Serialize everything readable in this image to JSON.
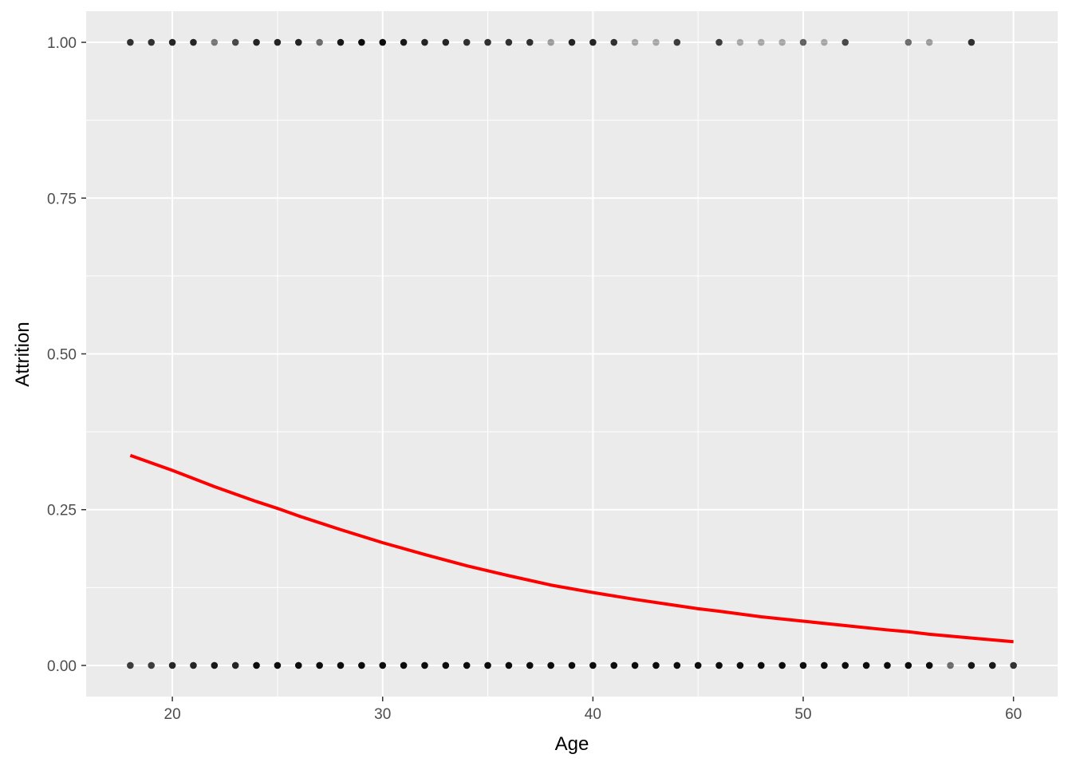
{
  "chart_data": {
    "type": "scatter",
    "xlabel": "Age",
    "ylabel": "Attrition",
    "xlim": [
      15.9,
      62.1
    ],
    "ylim": [
      -0.05,
      1.05
    ],
    "x_ticks": [
      20,
      30,
      40,
      50,
      60
    ],
    "x_tick_labels": [
      "20",
      "30",
      "40",
      "50",
      "60"
    ],
    "y_ticks": [
      0,
      0.25,
      0.5,
      0.75,
      1.0
    ],
    "y_tick_labels": [
      "0.00",
      "0.25",
      "0.50",
      "0.75",
      "1.00"
    ],
    "grid": true,
    "legend": "none",
    "colors": {
      "panel": "#ebebeb",
      "grid": "#ffffff",
      "points": "#000000",
      "fit_line": "#ff0000"
    },
    "series": [
      {
        "kind": "points",
        "y": 1,
        "points": [
          {
            "x": 18,
            "opacity": 0.8
          },
          {
            "x": 19,
            "opacity": 0.8
          },
          {
            "x": 20,
            "opacity": 0.85
          },
          {
            "x": 21,
            "opacity": 0.85
          },
          {
            "x": 22,
            "opacity": 0.5
          },
          {
            "x": 23,
            "opacity": 0.7
          },
          {
            "x": 24,
            "opacity": 0.85
          },
          {
            "x": 25,
            "opacity": 0.85
          },
          {
            "x": 26,
            "opacity": 0.85
          },
          {
            "x": 27,
            "opacity": 0.55
          },
          {
            "x": 28,
            "opacity": 0.9
          },
          {
            "x": 29,
            "opacity": 0.95
          },
          {
            "x": 30,
            "opacity": 0.95
          },
          {
            "x": 31,
            "opacity": 0.9
          },
          {
            "x": 32,
            "opacity": 0.85
          },
          {
            "x": 33,
            "opacity": 0.85
          },
          {
            "x": 34,
            "opacity": 0.8
          },
          {
            "x": 35,
            "opacity": 0.8
          },
          {
            "x": 36,
            "opacity": 0.8
          },
          {
            "x": 37,
            "opacity": 0.8
          },
          {
            "x": 38,
            "opacity": 0.35
          },
          {
            "x": 39,
            "opacity": 0.85
          },
          {
            "x": 40,
            "opacity": 0.85
          },
          {
            "x": 41,
            "opacity": 0.8
          },
          {
            "x": 42,
            "opacity": 0.3
          },
          {
            "x": 43,
            "opacity": 0.3
          },
          {
            "x": 44,
            "opacity": 0.75
          },
          {
            "x": 46,
            "opacity": 0.75
          },
          {
            "x": 47,
            "opacity": 0.3
          },
          {
            "x": 48,
            "opacity": 0.3
          },
          {
            "x": 49,
            "opacity": 0.3
          },
          {
            "x": 50,
            "opacity": 0.6
          },
          {
            "x": 51,
            "opacity": 0.3
          },
          {
            "x": 52,
            "opacity": 0.7
          },
          {
            "x": 55,
            "opacity": 0.55
          },
          {
            "x": 56,
            "opacity": 0.35
          },
          {
            "x": 58,
            "opacity": 0.8
          }
        ]
      },
      {
        "kind": "points",
        "y": 0,
        "points": [
          {
            "x": 18,
            "opacity": 0.75
          },
          {
            "x": 19,
            "opacity": 0.75
          },
          {
            "x": 20,
            "opacity": 0.85
          },
          {
            "x": 21,
            "opacity": 0.85
          },
          {
            "x": 22,
            "opacity": 0.9
          },
          {
            "x": 23,
            "opacity": 0.85
          },
          {
            "x": 24,
            "opacity": 0.95
          },
          {
            "x": 25,
            "opacity": 0.95
          },
          {
            "x": 26,
            "opacity": 0.95
          },
          {
            "x": 27,
            "opacity": 0.95
          },
          {
            "x": 28,
            "opacity": 0.95
          },
          {
            "x": 29,
            "opacity": 0.95
          },
          {
            "x": 30,
            "opacity": 0.95
          },
          {
            "x": 31,
            "opacity": 0.95
          },
          {
            "x": 32,
            "opacity": 0.95
          },
          {
            "x": 33,
            "opacity": 0.95
          },
          {
            "x": 34,
            "opacity": 0.95
          },
          {
            "x": 35,
            "opacity": 0.95
          },
          {
            "x": 36,
            "opacity": 0.95
          },
          {
            "x": 37,
            "opacity": 0.95
          },
          {
            "x": 38,
            "opacity": 0.95
          },
          {
            "x": 39,
            "opacity": 0.95
          },
          {
            "x": 40,
            "opacity": 0.95
          },
          {
            "x": 41,
            "opacity": 0.95
          },
          {
            "x": 42,
            "opacity": 0.95
          },
          {
            "x": 43,
            "opacity": 0.95
          },
          {
            "x": 44,
            "opacity": 0.95
          },
          {
            "x": 45,
            "opacity": 0.95
          },
          {
            "x": 46,
            "opacity": 0.95
          },
          {
            "x": 47,
            "opacity": 0.95
          },
          {
            "x": 48,
            "opacity": 0.95
          },
          {
            "x": 49,
            "opacity": 0.95
          },
          {
            "x": 50,
            "opacity": 0.95
          },
          {
            "x": 51,
            "opacity": 0.95
          },
          {
            "x": 52,
            "opacity": 0.95
          },
          {
            "x": 53,
            "opacity": 0.95
          },
          {
            "x": 54,
            "opacity": 0.95
          },
          {
            "x": 55,
            "opacity": 0.95
          },
          {
            "x": 56,
            "opacity": 0.95
          },
          {
            "x": 57,
            "opacity": 0.55
          },
          {
            "x": 58,
            "opacity": 0.9
          },
          {
            "x": 59,
            "opacity": 0.9
          },
          {
            "x": 60,
            "opacity": 0.8
          }
        ]
      },
      {
        "kind": "line",
        "x": [
          18,
          20,
          22,
          24,
          25,
          26,
          28,
          30,
          32,
          34,
          35,
          36,
          38,
          40,
          42,
          44,
          45,
          46,
          48,
          50,
          52,
          54,
          55,
          56,
          58,
          60
        ],
        "y": [
          0.337,
          0.313,
          0.287,
          0.263,
          0.252,
          0.24,
          0.218,
          0.197,
          0.178,
          0.16,
          0.152,
          0.144,
          0.129,
          0.117,
          0.106,
          0.096,
          0.091,
          0.087,
          0.078,
          0.071,
          0.064,
          0.057,
          0.054,
          0.05,
          0.044,
          0.038
        ]
      }
    ]
  }
}
